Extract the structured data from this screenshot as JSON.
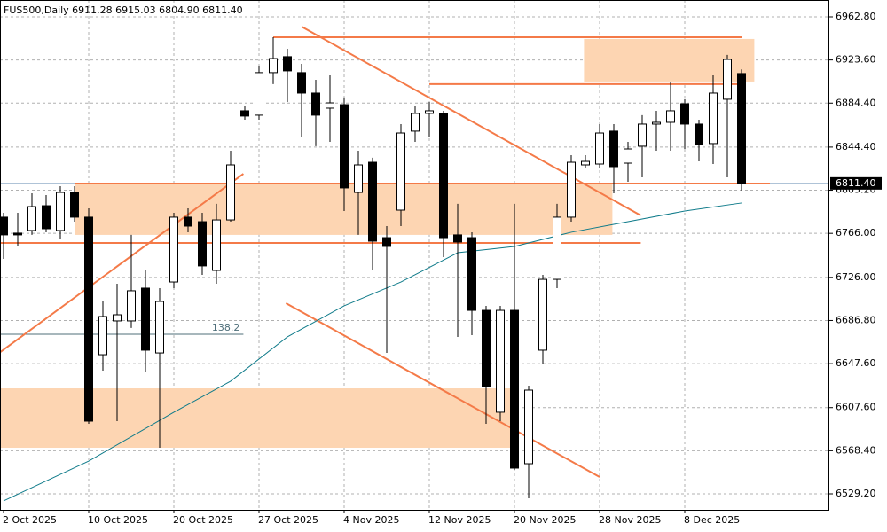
{
  "chart_data": {
    "type": "candlestick",
    "title": "FUS500,Daily  6911.28 6915.03 6804.90 6811.40",
    "categories": [
      "2 Oct 2025",
      null,
      null,
      null,
      null,
      null,
      "10 Oct 2025",
      null,
      null,
      null,
      null,
      null,
      "20 Oct 2025",
      null,
      null,
      null,
      null,
      null,
      "27 Oct 2025",
      null,
      null,
      null,
      null,
      null,
      "4 Nov 2025",
      null,
      null,
      null,
      null,
      null,
      "12 Nov 2025",
      null,
      null,
      null,
      null,
      null,
      "20 Nov 2025",
      null,
      null,
      null,
      null,
      null,
      "28 Nov 2025",
      null,
      null,
      null,
      null,
      null,
      "8 Dec 2025",
      null,
      null,
      null,
      null
    ],
    "open": [
      6780.7,
      6766.2,
      6768.6,
      6791.1,
      6768.6,
      6803.2,
      6780.7,
      6655.7,
      6686.4,
      6686.4,
      6716.2,
      6657.3,
      6721.8,
      6780.7,
      6776.6,
      6732.3,
      6778.2,
      6877.4,
      6873.4,
      6912.1,
      6926.6,
      6912.1,
      6893.5,
      6879.8,
      6883.0,
      6803.2,
      6830.6,
      6762.1,
      6787.1,
      6858.9,
      6875.0,
      6875.0,
      6764.6,
      6762.1,
      6696.0,
      6603.4,
      6696.0,
      6556.6,
      6659.8,
      6724.2,
      6780.7,
      6828.2,
      6829.0,
      6858.9,
      6829.8,
      6845.2,
      6865.3,
      6866.9,
      6883.8,
      6865.3,
      6847.6,
      6887.9,
      6911.28
    ],
    "high": [
      6784.7,
      6784.7,
      6802.4,
      6800.8,
      6808.9,
      6808.9,
      6788.7,
      6704.1,
      6720.2,
      6764.6,
      6732.3,
      6716.2,
      6784.7,
      6788.7,
      6784.7,
      6792.8,
      6841.1,
      6881.4,
      6917.7,
      6944.3,
      6933.8,
      6920.1,
      6905.6,
      6909.6,
      6889.5,
      6841.1,
      6834.7,
      6772.6,
      6865.3,
      6881.4,
      6885.4,
      6877.4,
      6792.8,
      6767.0,
      6700.1,
      6700.1,
      6792.8,
      6627.5,
      6728.3,
      6792.8,
      6837.1,
      6837.1,
      6865.3,
      6865.3,
      6849.2,
      6873.4,
      6877.4,
      6904.0,
      6887.9,
      6869.3,
      6909.6,
      6928.2,
      6915.03
    ],
    "low": [
      6742.8,
      6754.1,
      6764.6,
      6767.0,
      6760.5,
      6776.6,
      6592.9,
      6641.2,
      6595.3,
      6680.0,
      6639.6,
      6571.1,
      6716.2,
      6767.0,
      6728.3,
      6720.2,
      6776.6,
      6869.3,
      6869.3,
      6901.6,
      6885.4,
      6853.2,
      6845.2,
      6849.2,
      6786.3,
      6764.6,
      6732.3,
      6657.3,
      6772.6,
      6849.2,
      6853.2,
      6744.4,
      6671.9,
      6673.5,
      6592.9,
      6595.3,
      6551.0,
      6525.2,
      6647.7,
      6716.2,
      6776.6,
      6825.0,
      6825.0,
      6802.4,
      6812.9,
      6816.9,
      6841.1,
      6841.1,
      6842.7,
      6831.4,
      6829.0,
      6816.9,
      6804.9
    ],
    "close": [
      6764.6,
      6764.6,
      6790.3,
      6770.2,
      6803.2,
      6780.7,
      6595.3,
      6690.4,
      6692.0,
      6713.8,
      6659.8,
      6704.1,
      6780.7,
      6772.6,
      6736.4,
      6778.2,
      6828.2,
      6872.6,
      6912.1,
      6924.9,
      6913.7,
      6893.5,
      6873.4,
      6884.6,
      6807.3,
      6828.2,
      6758.9,
      6754.1,
      6857.2,
      6875.0,
      6877.4,
      6762.1,
      6758.1,
      6696.0,
      6626.7,
      6696.0,
      6552.6,
      6623.5,
      6724.2,
      6780.7,
      6830.6,
      6831.4,
      6857.2,
      6826.6,
      6842.7,
      6865.3,
      6866.9,
      6877.4,
      6865.3,
      6846.8,
      6893.5,
      6924.1,
      6811.4
    ],
    "up_color": "#ffffff",
    "down_color": "#000000",
    "ylim": [
      6514.7,
      6978.1
    ],
    "yticks": [
      {
        "value": 6962.8,
        "label": "6962.80"
      },
      {
        "value": 6923.6,
        "label": "6923.60"
      },
      {
        "value": 6884.4,
        "label": "6884.40"
      },
      {
        "value": 6844.4,
        "label": "6844.40"
      },
      {
        "value": 6805.2,
        "label": "6805.20"
      },
      {
        "value": 6766.0,
        "label": "6766.00"
      },
      {
        "value": 6726.0,
        "label": "6726.00"
      },
      {
        "value": 6686.8,
        "label": "6686.80"
      },
      {
        "value": 6647.6,
        "label": "6647.60"
      },
      {
        "value": 6607.6,
        "label": "6607.60"
      },
      {
        "value": 6568.4,
        "label": "6568.40"
      },
      {
        "value": 6529.2,
        "label": "6529.20"
      }
    ],
    "grid": true,
    "ma": {
      "color": "#0f7b8a",
      "x": [
        0,
        6,
        12,
        16,
        20,
        24,
        28,
        32,
        36,
        40,
        44,
        48,
        52
      ],
      "values": [
        6522.8,
        6559.0,
        6603.4,
        6631.6,
        6671.9,
        6700.1,
        6721.8,
        6748.4,
        6754.1,
        6767.0,
        6776.6,
        6786.3,
        6793.6
      ]
    },
    "zone_color": "#fdd5b2",
    "zones": [
      {
        "x": [
          5,
          42.9
        ],
        "y": [
          6811.3,
          6764.6
        ]
      },
      {
        "x": [
          -0.25,
          36
        ],
        "y": [
          6625.1,
          6571.1
        ]
      },
      {
        "x": [
          40.9,
          52.9
        ],
        "y": [
          6942.7,
          6904.0
        ]
      }
    ],
    "line_color": "#f47a48",
    "lines": [
      {
        "x": [
          19,
          52
        ],
        "y": [
          6944.3,
          6944.3
        ]
      },
      {
        "x": [
          30,
          52
        ],
        "y": [
          6901.6,
          6901.6
        ]
      },
      {
        "x": [
          5,
          54
        ],
        "y": [
          6811.3,
          6811.3
        ]
      },
      {
        "x": [
          -0.25,
          44.9
        ],
        "y": [
          6757.3,
          6757.3
        ]
      },
      {
        "x": [
          -0.25,
          16.9
        ],
        "y": [
          6657.9,
          6820.1
        ]
      },
      {
        "x": [
          21,
          44.9
        ],
        "y": [
          6953.9,
          6782.3
        ]
      },
      {
        "x": [
          19.9,
          42
        ],
        "y": [
          6702.5,
          6544.5
        ]
      }
    ],
    "fib": {
      "label": "138.2",
      "value": 6674.3,
      "x": [
        -0.25,
        16.9
      ],
      "color": "#4f6f7a"
    },
    "last_price": {
      "value": 6811.4,
      "label": "6811.40",
      "color": "#7f9fbf"
    }
  }
}
